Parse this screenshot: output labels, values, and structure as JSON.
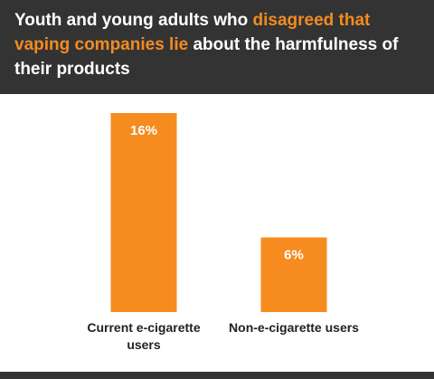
{
  "chart_data": {
    "type": "bar",
    "title": [
      {
        "text": "Youth and young adults who ",
        "color": "#ffffff"
      },
      {
        "text": "disagreed that vaping companies lie",
        "color": "#f28b22"
      },
      {
        "text": " about the harmfulness of their products",
        "color": "#ffffff"
      }
    ],
    "categories": [
      "Current e-cigarette users",
      "Non-e-cigarette users"
    ],
    "values": [
      16,
      6
    ],
    "value_labels": [
      "16%",
      "6%"
    ],
    "color": "#f68b1f"
  }
}
